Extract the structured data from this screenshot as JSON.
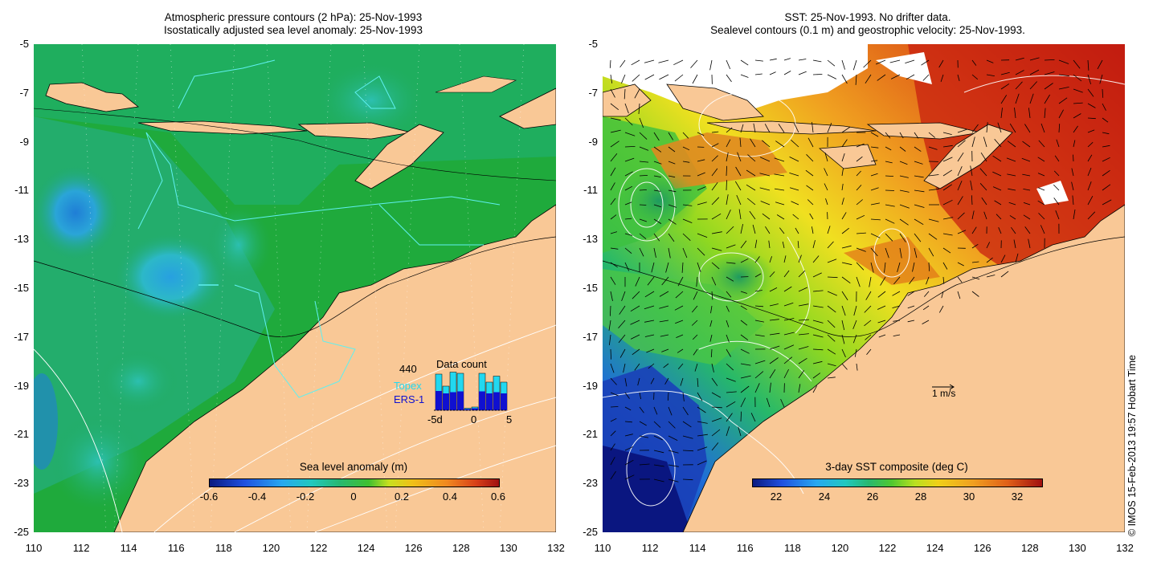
{
  "left_panel": {
    "title_line1": "Atmospheric pressure contours (2 hPa): 25-Nov-1993",
    "title_line2": "Isostatically adjusted sea level anomaly: 25-Nov-1993",
    "colorbar": {
      "title": "Sea level anomaly (m)",
      "ticks": [
        "-0.6",
        "-0.4",
        "-0.2",
        "0",
        "0.2",
        "0.4",
        "0.6"
      ],
      "range": [
        -0.6,
        0.6
      ]
    },
    "data_count": {
      "title": "Data count",
      "max_label": "440",
      "topex_label": "Topex",
      "ers_label": "ERS-1",
      "x_labels": [
        "-5d",
        "0",
        "5"
      ],
      "topex_color": "#22d8f0",
      "ers_color": "#1010d0"
    }
  },
  "right_panel": {
    "title_line1": "SST: 25-Nov-1993. No drifter data.",
    "title_line2": "Sealevel contours (0.1 m) and geostrophic velocity: 25-Nov-1993.",
    "colorbar": {
      "title": "3-day SST composite (deg C)",
      "ticks": [
        "22",
        "24",
        "26",
        "28",
        "30",
        "32"
      ],
      "range": [
        21,
        33
      ]
    },
    "velocity_scale_label": "1 m/s"
  },
  "axes": {
    "y_ticks": [
      "-5",
      "-7",
      "-9",
      "-11",
      "-13",
      "-15",
      "-17",
      "-19",
      "-21",
      "-23",
      "-25"
    ],
    "x_ticks": [
      "110",
      "112",
      "114",
      "116",
      "118",
      "120",
      "122",
      "124",
      "126",
      "128",
      "130",
      "132"
    ],
    "lon_range": [
      110,
      132
    ],
    "lat_range": [
      -25,
      -5
    ]
  },
  "copyright": "© IMOS 15-Feb-2013 19:57 Hobart Time",
  "colors": {
    "land": "#f9c896",
    "ocean_green": "#1faa3c",
    "missing": "#ffffff"
  }
}
